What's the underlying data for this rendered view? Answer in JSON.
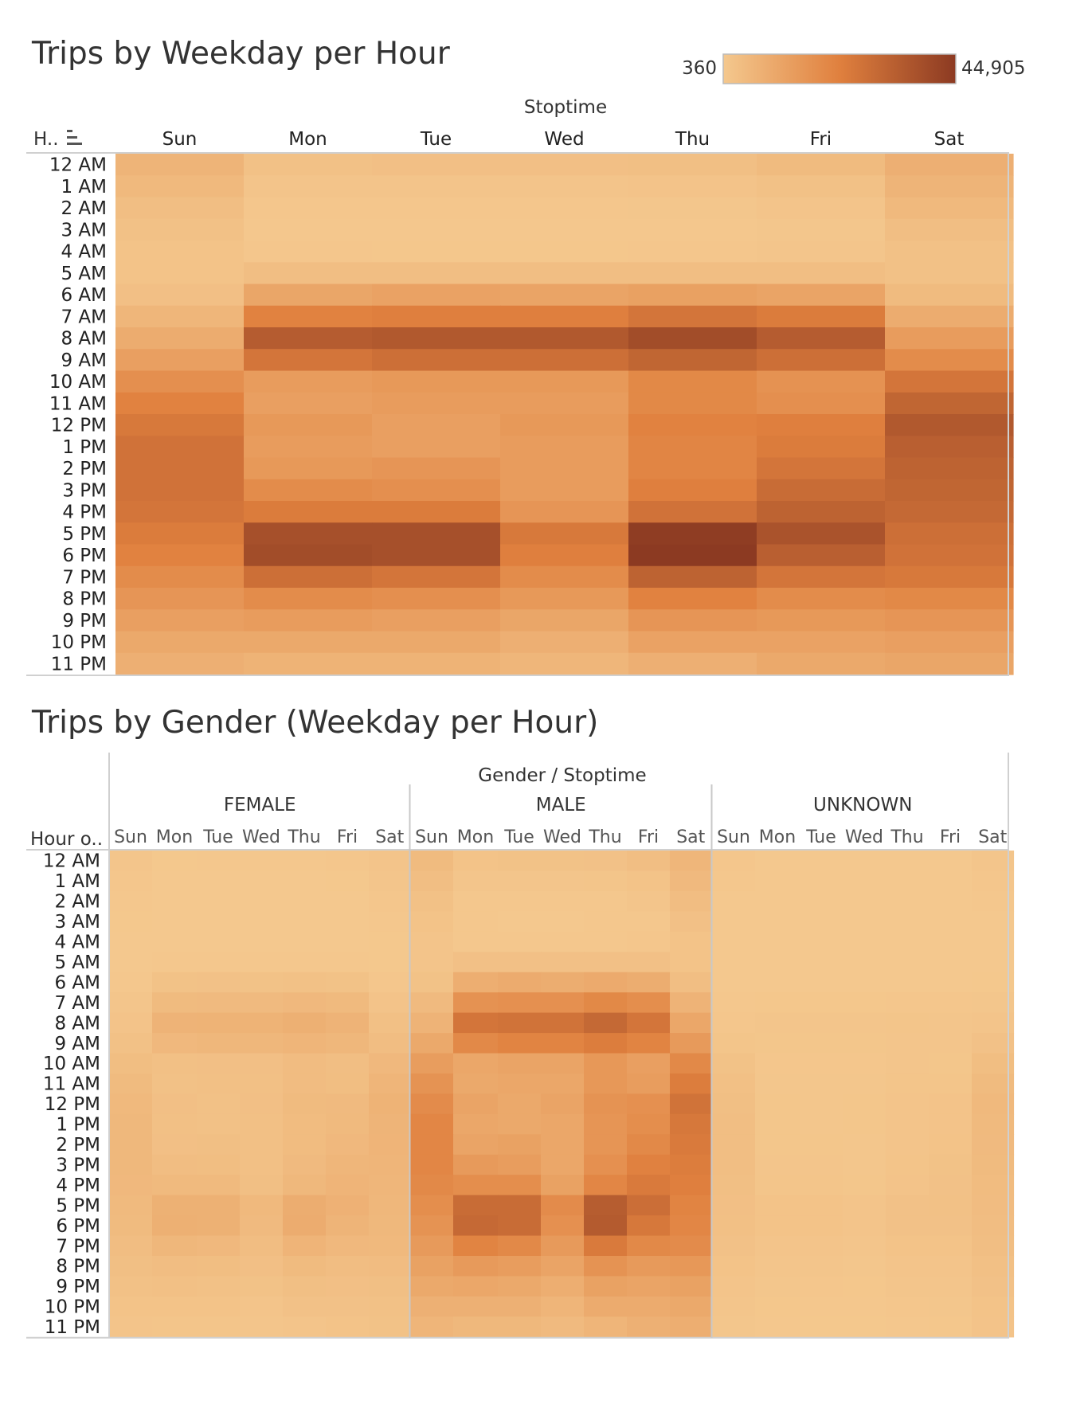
{
  "colors": {
    "low": "#f4c88e",
    "mid": "#e0803e",
    "high": "#8c3a22"
  },
  "chart_data": [
    {
      "type": "heatmap",
      "title": "Trips by Weekday per Hour",
      "column_header": "Stoptime",
      "row_header": "H..",
      "legend": {
        "min_label": "360",
        "max_label": "44,905",
        "min": 360,
        "max": 44905
      },
      "categories": [
        "Sun",
        "Mon",
        "Tue",
        "Wed",
        "Thu",
        "Fri",
        "Sat"
      ],
      "rows": [
        "12 AM",
        "1 AM",
        "2 AM",
        "3 AM",
        "4 AM",
        "5 AM",
        "6 AM",
        "7 AM",
        "8 AM",
        "9 AM",
        "10 AM",
        "11 AM",
        "12 PM",
        "1 PM",
        "2 PM",
        "3 PM",
        "4 PM",
        "5 PM",
        "6 PM",
        "7 PM",
        "8 PM",
        "9 PM",
        "10 PM",
        "11 PM"
      ],
      "values": [
        [
          6500,
          2500,
          3000,
          3000,
          3200,
          4500,
          8000
        ],
        [
          5000,
          1500,
          1500,
          1500,
          1800,
          2500,
          6500
        ],
        [
          3500,
          900,
          900,
          900,
          1000,
          1500,
          5000
        ],
        [
          2500,
          700,
          600,
          600,
          700,
          1000,
          3500
        ],
        [
          2000,
          900,
          800,
          800,
          900,
          1200,
          2500
        ],
        [
          2000,
          3500,
          3500,
          3500,
          3500,
          3500,
          2500
        ],
        [
          3000,
          11000,
          12000,
          11500,
          12500,
          11500,
          4500
        ],
        [
          6000,
          22000,
          23000,
          23000,
          26000,
          24000,
          9000
        ],
        [
          9000,
          34000,
          35000,
          35000,
          39000,
          34000,
          14000
        ],
        [
          13000,
          26000,
          28000,
          28000,
          31000,
          28000,
          19000
        ],
        [
          18000,
          14000,
          15000,
          15000,
          20000,
          17000,
          26000
        ],
        [
          22000,
          13000,
          14000,
          14000,
          20000,
          18000,
          31000
        ],
        [
          25000,
          15000,
          13000,
          15000,
          22000,
          23000,
          35000
        ],
        [
          27000,
          14000,
          13000,
          14000,
          21000,
          24000,
          33000
        ],
        [
          27000,
          15000,
          16000,
          14000,
          21000,
          26000,
          32000
        ],
        [
          27000,
          19000,
          18000,
          14000,
          23000,
          29000,
          31000
        ],
        [
          26000,
          24000,
          24000,
          16000,
          27000,
          32000,
          30000
        ],
        [
          24000,
          38000,
          38000,
          25000,
          44000,
          37000,
          28000
        ],
        [
          22000,
          39000,
          38000,
          23000,
          44905,
          33000,
          27000
        ],
        [
          19000,
          28000,
          26000,
          19000,
          32000,
          26000,
          25000
        ],
        [
          16000,
          19000,
          18000,
          15000,
          22000,
          19000,
          20000
        ],
        [
          13000,
          14000,
          13000,
          11000,
          16000,
          15000,
          16000
        ],
        [
          10000,
          10000,
          10000,
          8000,
          12000,
          12000,
          13000
        ],
        [
          8000,
          7000,
          7000,
          6000,
          8000,
          10000,
          11000
        ]
      ]
    },
    {
      "type": "heatmap",
      "title": "Trips by Gender (Weekday per Hour)",
      "column_header": "Gender / Stoptime",
      "row_header": "Hour o..",
      "groups": [
        "FEMALE",
        "MALE",
        "UNKNOWN"
      ],
      "categories": [
        "Sun",
        "Mon",
        "Tue",
        "Wed",
        "Thu",
        "Fri",
        "Sat"
      ],
      "rows": [
        "12 AM",
        "1 AM",
        "2 AM",
        "3 AM",
        "4 AM",
        "5 AM",
        "6 AM",
        "7 AM",
        "8 AM",
        "9 AM",
        "10 AM",
        "11 AM",
        "12 PM",
        "1 PM",
        "2 PM",
        "3 PM",
        "4 PM",
        "5 PM",
        "6 PM",
        "7 PM",
        "8 PM",
        "9 PM",
        "10 PM",
        "11 PM"
      ],
      "values": {
        "FEMALE": [
          [
            1200,
            500,
            600,
            600,
            600,
            900,
            1500
          ],
          [
            900,
            300,
            300,
            300,
            350,
            500,
            1200
          ],
          [
            700,
            200,
            200,
            200,
            200,
            300,
            900
          ],
          [
            500,
            150,
            150,
            150,
            150,
            200,
            700
          ],
          [
            400,
            200,
            200,
            200,
            200,
            250,
            500
          ],
          [
            400,
            700,
            700,
            700,
            700,
            700,
            500
          ],
          [
            600,
            2200,
            2400,
            2300,
            2500,
            2300,
            900
          ],
          [
            1200,
            4400,
            4600,
            4600,
            5200,
            4800,
            1800
          ],
          [
            1800,
            6800,
            7000,
            7000,
            7800,
            6800,
            2800
          ],
          [
            2600,
            5200,
            5600,
            5600,
            6200,
            5600,
            3800
          ],
          [
            3600,
            2800,
            3000,
            3000,
            4000,
            3400,
            5200
          ],
          [
            4400,
            2600,
            2800,
            2800,
            4000,
            3600,
            6200
          ],
          [
            5000,
            3000,
            2600,
            3000,
            4400,
            4600,
            7000
          ],
          [
            5400,
            2800,
            2600,
            2800,
            4200,
            4800,
            6600
          ],
          [
            5400,
            3000,
            3200,
            2800,
            4200,
            5200,
            6400
          ],
          [
            5400,
            3800,
            3600,
            2800,
            4600,
            5800,
            6200
          ],
          [
            5200,
            4800,
            4800,
            3200,
            5400,
            6400,
            6000
          ],
          [
            4800,
            7600,
            7600,
            5000,
            8800,
            7400,
            5600
          ],
          [
            4400,
            7800,
            7600,
            4600,
            9000,
            6600,
            5400
          ],
          [
            3800,
            5600,
            5200,
            3800,
            6400,
            5200,
            5000
          ],
          [
            3200,
            3800,
            3600,
            3000,
            4400,
            3800,
            4000
          ],
          [
            2600,
            2800,
            2600,
            2200,
            3200,
            3000,
            3200
          ],
          [
            2000,
            2000,
            2000,
            1600,
            2400,
            2400,
            2600
          ],
          [
            1600,
            1400,
            1400,
            1200,
            1600,
            2000,
            2200
          ]
        ],
        "MALE": [
          [
            4400,
            1900,
            2300,
            2300,
            2400,
            3400,
            6000
          ],
          [
            3500,
            1150,
            1150,
            1150,
            1400,
            1900,
            4900
          ],
          [
            2600,
            680,
            680,
            680,
            760,
            1150,
            3800
          ],
          [
            1900,
            530,
            450,
            450,
            530,
            760,
            2700
          ],
          [
            1500,
            680,
            600,
            600,
            680,
            900,
            1900
          ],
          [
            1500,
            2700,
            2700,
            2700,
            2700,
            2700,
            1900
          ],
          [
            2300,
            8400,
            9200,
            8800,
            9600,
            8800,
            3400
          ],
          [
            4600,
            17000,
            17600,
            17600,
            20000,
            18400,
            6900
          ],
          [
            6900,
            26000,
            26800,
            26800,
            30000,
            26000,
            10700
          ],
          [
            10000,
            19900,
            21400,
            21400,
            23700,
            21400,
            14500
          ],
          [
            13800,
            10700,
            11500,
            11500,
            15300,
            13000,
            19900
          ],
          [
            16800,
            10000,
            10700,
            10700,
            15300,
            13800,
            23700
          ],
          [
            19100,
            11500,
            10000,
            11500,
            16800,
            17600,
            26800
          ],
          [
            20700,
            10700,
            10000,
            10700,
            16100,
            18400,
            25300
          ],
          [
            20700,
            11500,
            12200,
            10700,
            16100,
            19900,
            24500
          ],
          [
            20700,
            14500,
            13800,
            10700,
            17600,
            22200,
            23700
          ],
          [
            19900,
            18400,
            18400,
            12200,
            20700,
            24500,
            23000
          ],
          [
            18400,
            29100,
            29100,
            19100,
            33700,
            28300,
            21400
          ],
          [
            16800,
            29800,
            29100,
            17600,
            34400,
            25300,
            20700
          ],
          [
            14500,
            21400,
            19900,
            14500,
            24500,
            19900,
            19100
          ],
          [
            12200,
            14500,
            13800,
            11500,
            16800,
            14500,
            15300
          ],
          [
            10000,
            10700,
            10000,
            8400,
            12200,
            11500,
            12200
          ],
          [
            7700,
            7700,
            7700,
            6100,
            9200,
            9200,
            10000
          ],
          [
            6100,
            5400,
            5400,
            4600,
            6100,
            7700,
            8400
          ]
        ],
        "UNKNOWN": [
          [
            900,
            100,
            100,
            100,
            120,
            200,
            1200
          ],
          [
            600,
            60,
            60,
            60,
            80,
            120,
            900
          ],
          [
            400,
            40,
            40,
            40,
            40,
            60,
            600
          ],
          [
            300,
            30,
            30,
            30,
            30,
            40,
            400
          ],
          [
            200,
            40,
            40,
            40,
            40,
            50,
            300
          ],
          [
            200,
            150,
            150,
            150,
            150,
            150,
            300
          ],
          [
            300,
            400,
            400,
            400,
            450,
            400,
            500
          ],
          [
            600,
            800,
            800,
            800,
            900,
            900,
            1000
          ],
          [
            900,
            1200,
            1200,
            1200,
            1400,
            1200,
            1600
          ],
          [
            1400,
            1100,
            1100,
            1100,
            1200,
            1200,
            2400
          ],
          [
            2200,
            900,
            900,
            900,
            1200,
            1100,
            3600
          ],
          [
            2800,
            1000,
            1000,
            1000,
            1400,
            1400,
            4400
          ],
          [
            3200,
            1100,
            1000,
            1100,
            1600,
            1800,
            5000
          ],
          [
            3400,
            1100,
            1000,
            1100,
            1600,
            1800,
            4800
          ],
          [
            3400,
            1100,
            1100,
            1000,
            1600,
            2000,
            4600
          ],
          [
            3400,
            1200,
            1200,
            1000,
            1700,
            2200,
            4400
          ],
          [
            3200,
            1400,
            1400,
            1100,
            1800,
            2400,
            4200
          ],
          [
            3000,
            2000,
            2000,
            1600,
            2400,
            2600,
            4000
          ],
          [
            2800,
            2000,
            2000,
            1500,
            2400,
            2400,
            3800
          ],
          [
            2400,
            1600,
            1600,
            1200,
            2000,
            2000,
            3400
          ],
          [
            2000,
            1200,
            1200,
            1000,
            1600,
            1600,
            2800
          ],
          [
            1600,
            1000,
            900,
            800,
            1200,
            1200,
            2400
          ],
          [
            1300,
            800,
            700,
            600,
            900,
            1000,
            2000
          ],
          [
            1000,
            600,
            500,
            500,
            700,
            800,
            1800
          ]
        ]
      }
    }
  ]
}
